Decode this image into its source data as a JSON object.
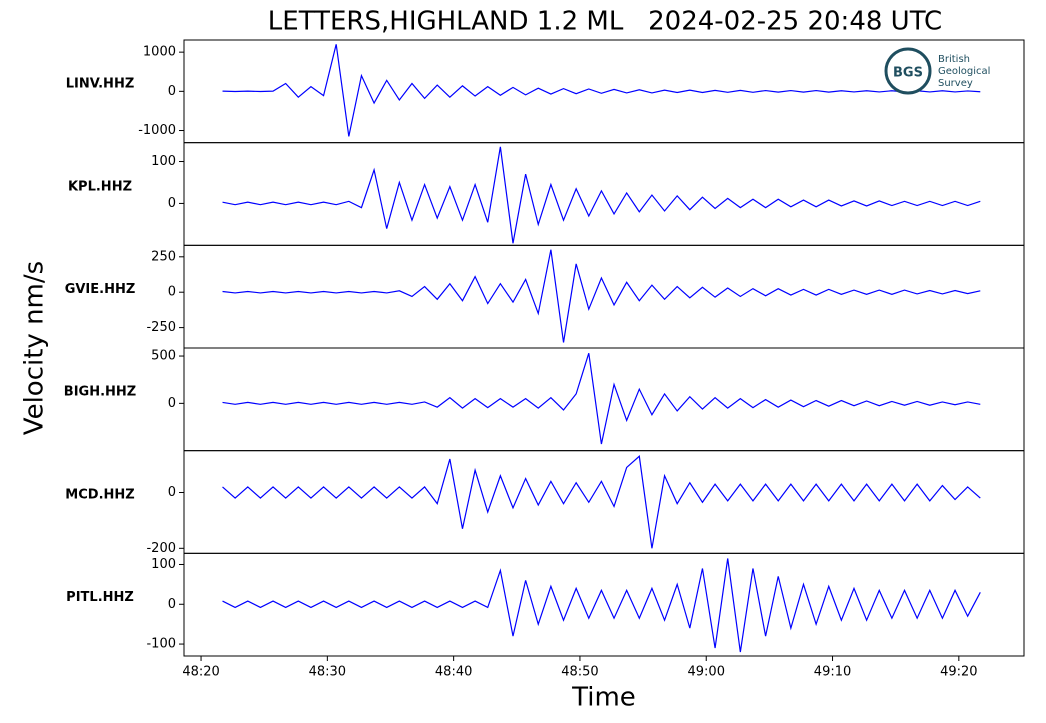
{
  "chart_data": {
    "type": "line",
    "title": "LETTERS,HIGHLAND 1.2 ML   2024-02-25 20:48 UTC",
    "y_label": "Velocity nm/s",
    "x_label": "Time",
    "xlim": [
      2898.65,
      2965.16
    ],
    "xticks": [
      {
        "value": 2900,
        "label": "48:20"
      },
      {
        "value": 2910,
        "label": "48:30"
      },
      {
        "value": 2920,
        "label": "48:40"
      },
      {
        "value": 2930,
        "label": "48:50"
      },
      {
        "value": 2940,
        "label": "49:00"
      },
      {
        "value": 2950,
        "label": "49:10"
      },
      {
        "value": 2960,
        "label": "49:20"
      }
    ],
    "x": [
      2901.7,
      2902.7,
      2903.7,
      2904.7,
      2905.7,
      2906.7,
      2907.7,
      2908.7,
      2909.7,
      2910.7,
      2911.7,
      2912.7,
      2913.7,
      2914.7,
      2915.7,
      2916.7,
      2917.7,
      2918.7,
      2919.7,
      2920.7,
      2921.7,
      2922.7,
      2923.7,
      2924.7,
      2925.7,
      2926.7,
      2927.7,
      2928.7,
      2929.7,
      2930.7,
      2931.7,
      2932.7,
      2933.7,
      2934.7,
      2935.7,
      2936.7,
      2937.7,
      2938.7,
      2939.7,
      2940.7,
      2941.7,
      2942.7,
      2943.7,
      2944.7,
      2945.7,
      2946.7,
      2947.7,
      2948.7,
      2949.7,
      2950.7,
      2951.7,
      2952.7,
      2953.7,
      2954.7,
      2955.7,
      2956.7,
      2957.7,
      2958.7,
      2959.7,
      2960.7,
      2961.7
    ],
    "series": [
      {
        "name": "LINV.HHZ",
        "color": "#0000ff",
        "ylim": [
          -1310,
          1310
        ],
        "yticks": [
          1000,
          0,
          -1000
        ],
        "values": [
          5,
          -5,
          5,
          -5,
          5,
          200,
          -150,
          120,
          -110,
          1200,
          -1150,
          400,
          -300,
          280,
          -220,
          200,
          -180,
          160,
          -150,
          140,
          -120,
          120,
          -100,
          100,
          -90,
          80,
          -70,
          70,
          -60,
          60,
          -50,
          50,
          -40,
          40,
          -40,
          30,
          -30,
          30,
          -30,
          25,
          -25,
          25,
          -25,
          20,
          -20,
          20,
          -20,
          20,
          -20,
          15,
          -15,
          15,
          -15,
          15,
          -15,
          15,
          -15,
          15,
          -15,
          10,
          -10
        ]
      },
      {
        "name": "KPL.HHZ",
        "color": "#0000ff",
        "ylim": [
          -100,
          145
        ],
        "yticks": [
          100,
          0
        ],
        "values": [
          3,
          -3,
          3,
          -3,
          3,
          -3,
          3,
          -3,
          3,
          -3,
          5,
          -10,
          80,
          -60,
          50,
          -40,
          45,
          -35,
          40,
          -40,
          45,
          -45,
          135,
          -95,
          70,
          -50,
          45,
          -40,
          35,
          -30,
          30,
          -25,
          25,
          -20,
          20,
          -18,
          18,
          -15,
          15,
          -12,
          12,
          -10,
          10,
          -10,
          10,
          -8,
          8,
          -8,
          8,
          -6,
          6,
          -6,
          6,
          -5,
          5,
          -5,
          5,
          -5,
          5,
          -5,
          5
        ]
      },
      {
        "name": "GVIE.HHZ",
        "color": "#0000ff",
        "ylim": [
          -394,
          331
        ],
        "yticks": [
          250,
          0,
          -250
        ],
        "values": [
          5,
          -5,
          5,
          -5,
          5,
          -5,
          5,
          -5,
          5,
          -5,
          5,
          -5,
          5,
          -5,
          10,
          -30,
          40,
          -50,
          60,
          -60,
          110,
          -80,
          60,
          -70,
          90,
          -150,
          300,
          -355,
          200,
          -120,
          100,
          -90,
          70,
          -60,
          50,
          -50,
          40,
          -40,
          35,
          -35,
          30,
          -30,
          25,
          -25,
          25,
          -20,
          20,
          -20,
          20,
          -15,
          15,
          -15,
          15,
          -15,
          15,
          -12,
          12,
          -12,
          12,
          -10,
          10
        ]
      },
      {
        "name": "BIGH.HHZ",
        "color": "#0000ff",
        "ylim": [
          -500,
          585
        ],
        "yticks": [
          500,
          0
        ],
        "values": [
          10,
          -10,
          10,
          -10,
          10,
          -10,
          10,
          -10,
          10,
          -10,
          10,
          -10,
          10,
          -10,
          10,
          -10,
          15,
          -40,
          60,
          -50,
          50,
          -45,
          50,
          -40,
          50,
          -50,
          60,
          -70,
          100,
          530,
          -430,
          200,
          -180,
          150,
          -120,
          100,
          -80,
          70,
          -60,
          60,
          -50,
          50,
          -45,
          40,
          -40,
          35,
          -35,
          30,
          -30,
          30,
          -25,
          25,
          -25,
          20,
          -20,
          20,
          -20,
          15,
          -15,
          15,
          -10
        ]
      },
      {
        "name": "MCD.HHZ",
        "color": "#0000ff",
        "ylim": [
          -218,
          150
        ],
        "yticks": [
          0,
          -200
        ],
        "values": [
          20,
          -20,
          20,
          -20,
          20,
          -20,
          20,
          -20,
          20,
          -20,
          20,
          -20,
          20,
          -20,
          20,
          -20,
          20,
          -40,
          120,
          -130,
          80,
          -70,
          60,
          -55,
          50,
          -45,
          40,
          -40,
          35,
          -35,
          40,
          -50,
          90,
          130,
          -200,
          60,
          -40,
          35,
          -35,
          30,
          -30,
          30,
          -30,
          30,
          -30,
          30,
          -30,
          30,
          -30,
          30,
          -30,
          30,
          -30,
          30,
          -30,
          30,
          -30,
          25,
          -25,
          20,
          -20
        ]
      },
      {
        "name": "PITL.HHZ",
        "color": "#0000ff",
        "ylim": [
          -130,
          128
        ],
        "yticks": [
          100,
          0,
          -100
        ],
        "values": [
          8,
          -8,
          8,
          -8,
          8,
          -8,
          8,
          -8,
          8,
          -8,
          8,
          -8,
          8,
          -8,
          8,
          -8,
          8,
          -8,
          8,
          -8,
          8,
          -8,
          85,
          -80,
          60,
          -50,
          45,
          -40,
          40,
          -35,
          35,
          -35,
          35,
          -35,
          40,
          -40,
          50,
          -60,
          90,
          -110,
          115,
          -120,
          90,
          -80,
          70,
          -60,
          50,
          -50,
          45,
          -40,
          40,
          -40,
          35,
          -35,
          35,
          -35,
          35,
          -35,
          35,
          -30,
          30
        ]
      }
    ]
  },
  "logo": {
    "abbr": "BGS",
    "lines": [
      "British",
      "Geological",
      "Survey"
    ]
  }
}
